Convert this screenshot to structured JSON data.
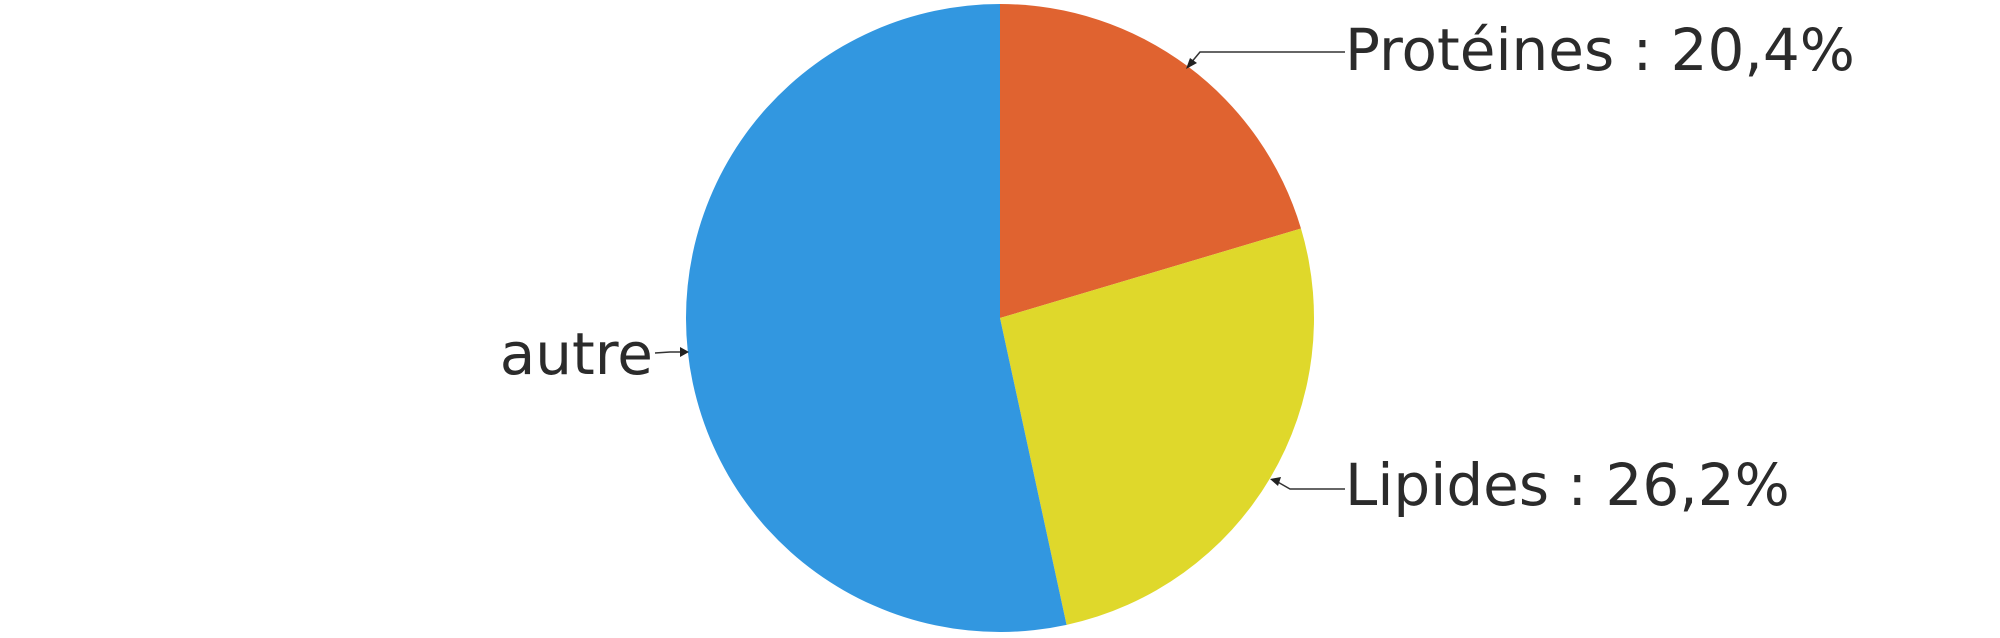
{
  "chart_data": {
    "type": "pie",
    "slices": [
      {
        "label": "Protéines",
        "value": 20.4,
        "value_text": "20,4%",
        "color": "#e06330"
      },
      {
        "label": "Lipides",
        "value": 26.2,
        "value_text": "26,2%",
        "color": "#dfd82b"
      },
      {
        "label": "autre",
        "value": 53.4,
        "value_text": "",
        "color": "#3297e0"
      }
    ],
    "start_angle": "12 o'clock",
    "direction": "clockwise",
    "legend": "none",
    "labels": {
      "proteines": "Protéines : 20,4%",
      "lipides": "Lipides : 26,2%",
      "autre": "autre"
    }
  }
}
